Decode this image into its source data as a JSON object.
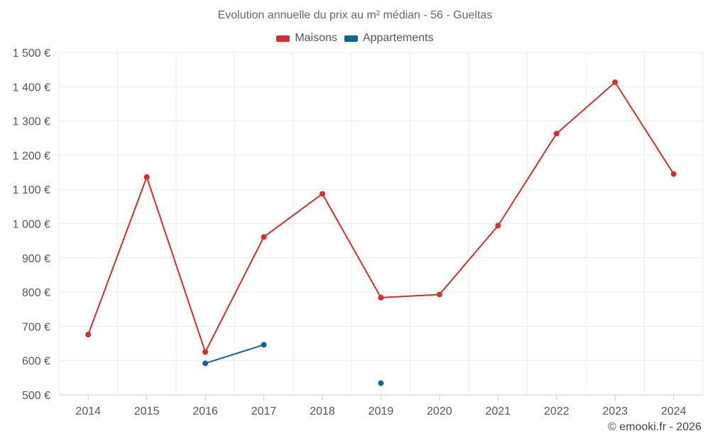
{
  "chart_data": {
    "type": "line",
    "title": "Evolution annuelle du prix au m² médian - 56 - Gueltas",
    "xlabel": "",
    "ylabel": "",
    "categories": [
      "2014",
      "2015",
      "2016",
      "2017",
      "2018",
      "2019",
      "2020",
      "2021",
      "2022",
      "2023",
      "2024"
    ],
    "ylim": [
      500,
      1500
    ],
    "yticks": [
      500,
      600,
      700,
      800,
      900,
      1000,
      1100,
      1200,
      1300,
      1400,
      1500
    ],
    "ytick_labels": [
      "500 €",
      "600 €",
      "700 €",
      "800 €",
      "900 €",
      "1 000 €",
      "1 100 €",
      "1 200 €",
      "1 300 €",
      "1 400 €",
      "1 500 €"
    ],
    "grid": true,
    "legend_position": "top-center",
    "series": [
      {
        "name": "Maisons",
        "color": "#d32f2f",
        "values": [
          676,
          1136,
          625,
          961,
          1087,
          784,
          793,
          994,
          1263,
          1413,
          1145
        ]
      },
      {
        "name": "Appartements",
        "color": "#0e6399",
        "values": [
          null,
          null,
          592,
          646,
          null,
          534,
          null,
          null,
          null,
          null,
          null
        ]
      }
    ]
  },
  "credit": "© emooki.fr - 2026"
}
